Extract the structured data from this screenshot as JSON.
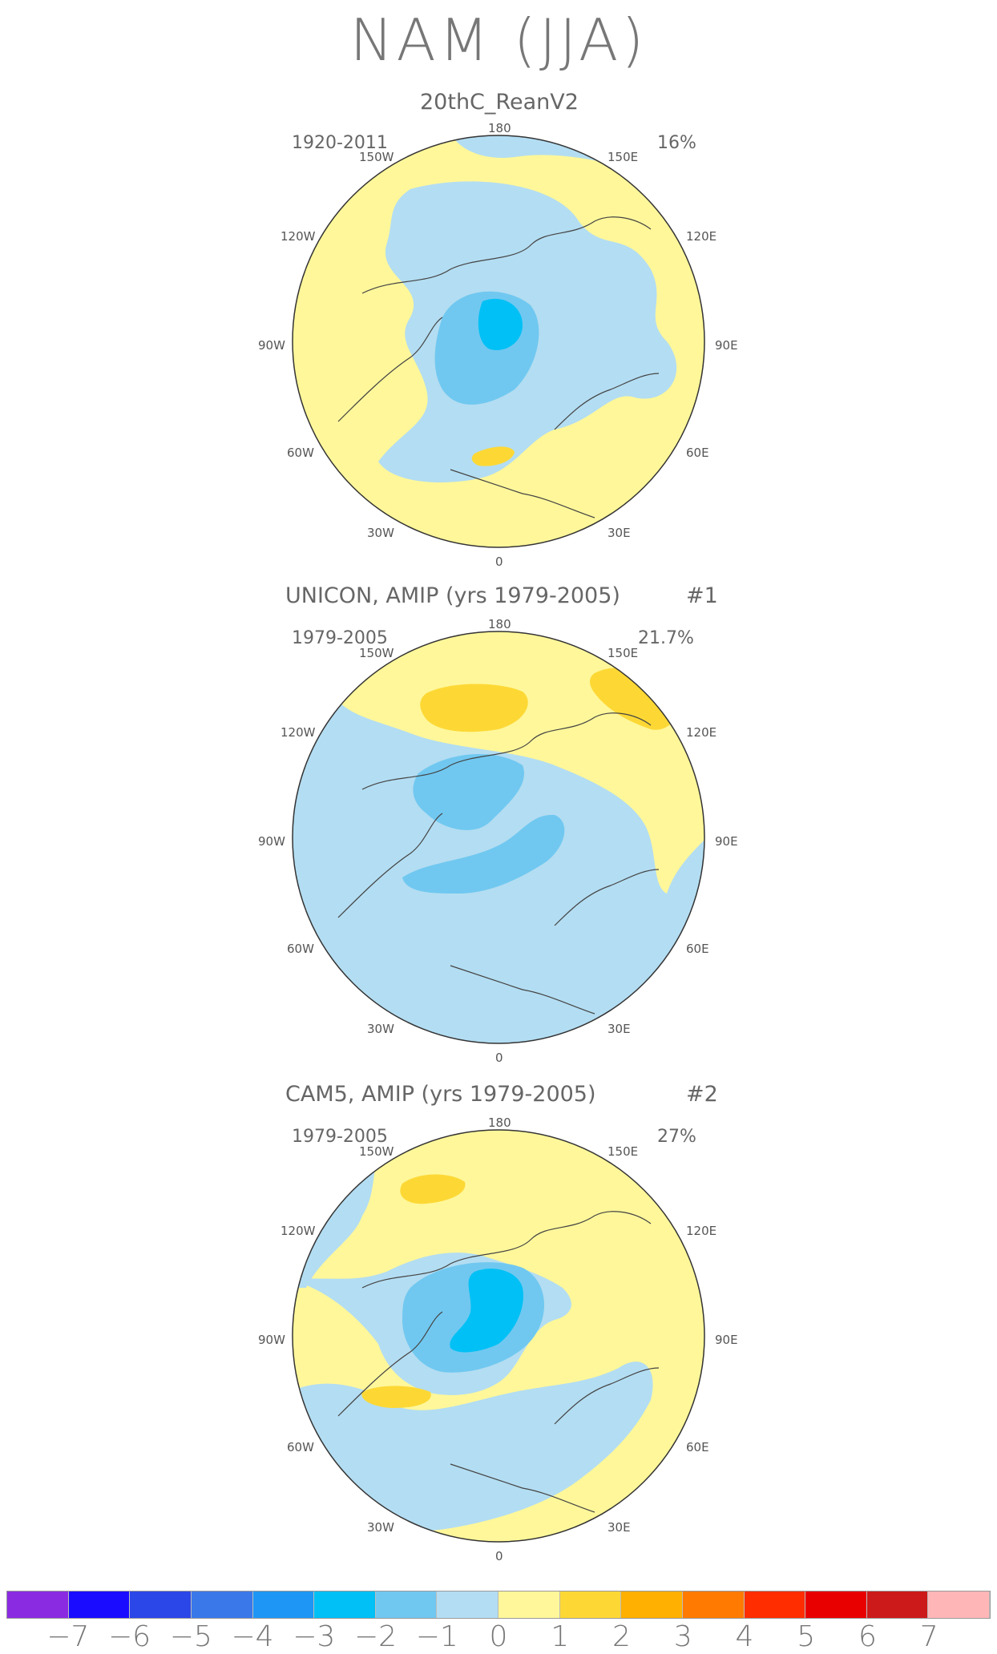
{
  "title": "NAM (JJA)",
  "colors": {
    "land_outline": "#444444",
    "circle_outline": "#333333",
    "bg_light_blue": "#b3ddf2",
    "bg_yellow": "#fff79a"
  },
  "longitude_labels": {
    "top": "180",
    "bottom": "0",
    "upper_left": "150W",
    "upper_right": "150E",
    "left_upper": "120W",
    "right_upper": "120E",
    "left_mid": "90W",
    "right_mid": "90E",
    "left_lower": "60W",
    "right_lower": "60E",
    "lower_left": "30W",
    "lower_right": "30E"
  },
  "panels": [
    {
      "title": "20thC_ReanV2",
      "period": "1920-2011",
      "variance": "16%",
      "number": ""
    },
    {
      "title": "UNICON, AMIP (yrs 1979-2005)",
      "period": "1979-2005",
      "variance": "21.7%",
      "number": "#1"
    },
    {
      "title": "CAM5, AMIP (yrs 1979-2005)",
      "period": "1979-2005",
      "variance": "27%",
      "number": "#2"
    }
  ],
  "colorbar": {
    "colors": [
      "#8a2be2",
      "#1a0dff",
      "#2b47e8",
      "#3a78ea",
      "#1e96f5",
      "#00c0f5",
      "#70c8f0",
      "#b3ddf2",
      "#fff79a",
      "#fdd835",
      "#ffb000",
      "#ff7a00",
      "#ff2d00",
      "#e80000",
      "#cc1a1a",
      "#ffb6b6"
    ],
    "ticks": [
      "−7",
      "−6",
      "−5",
      "−4",
      "−3",
      "−2",
      "−1",
      "0",
      "1",
      "2",
      "3",
      "4",
      "5",
      "6",
      "7"
    ]
  }
}
